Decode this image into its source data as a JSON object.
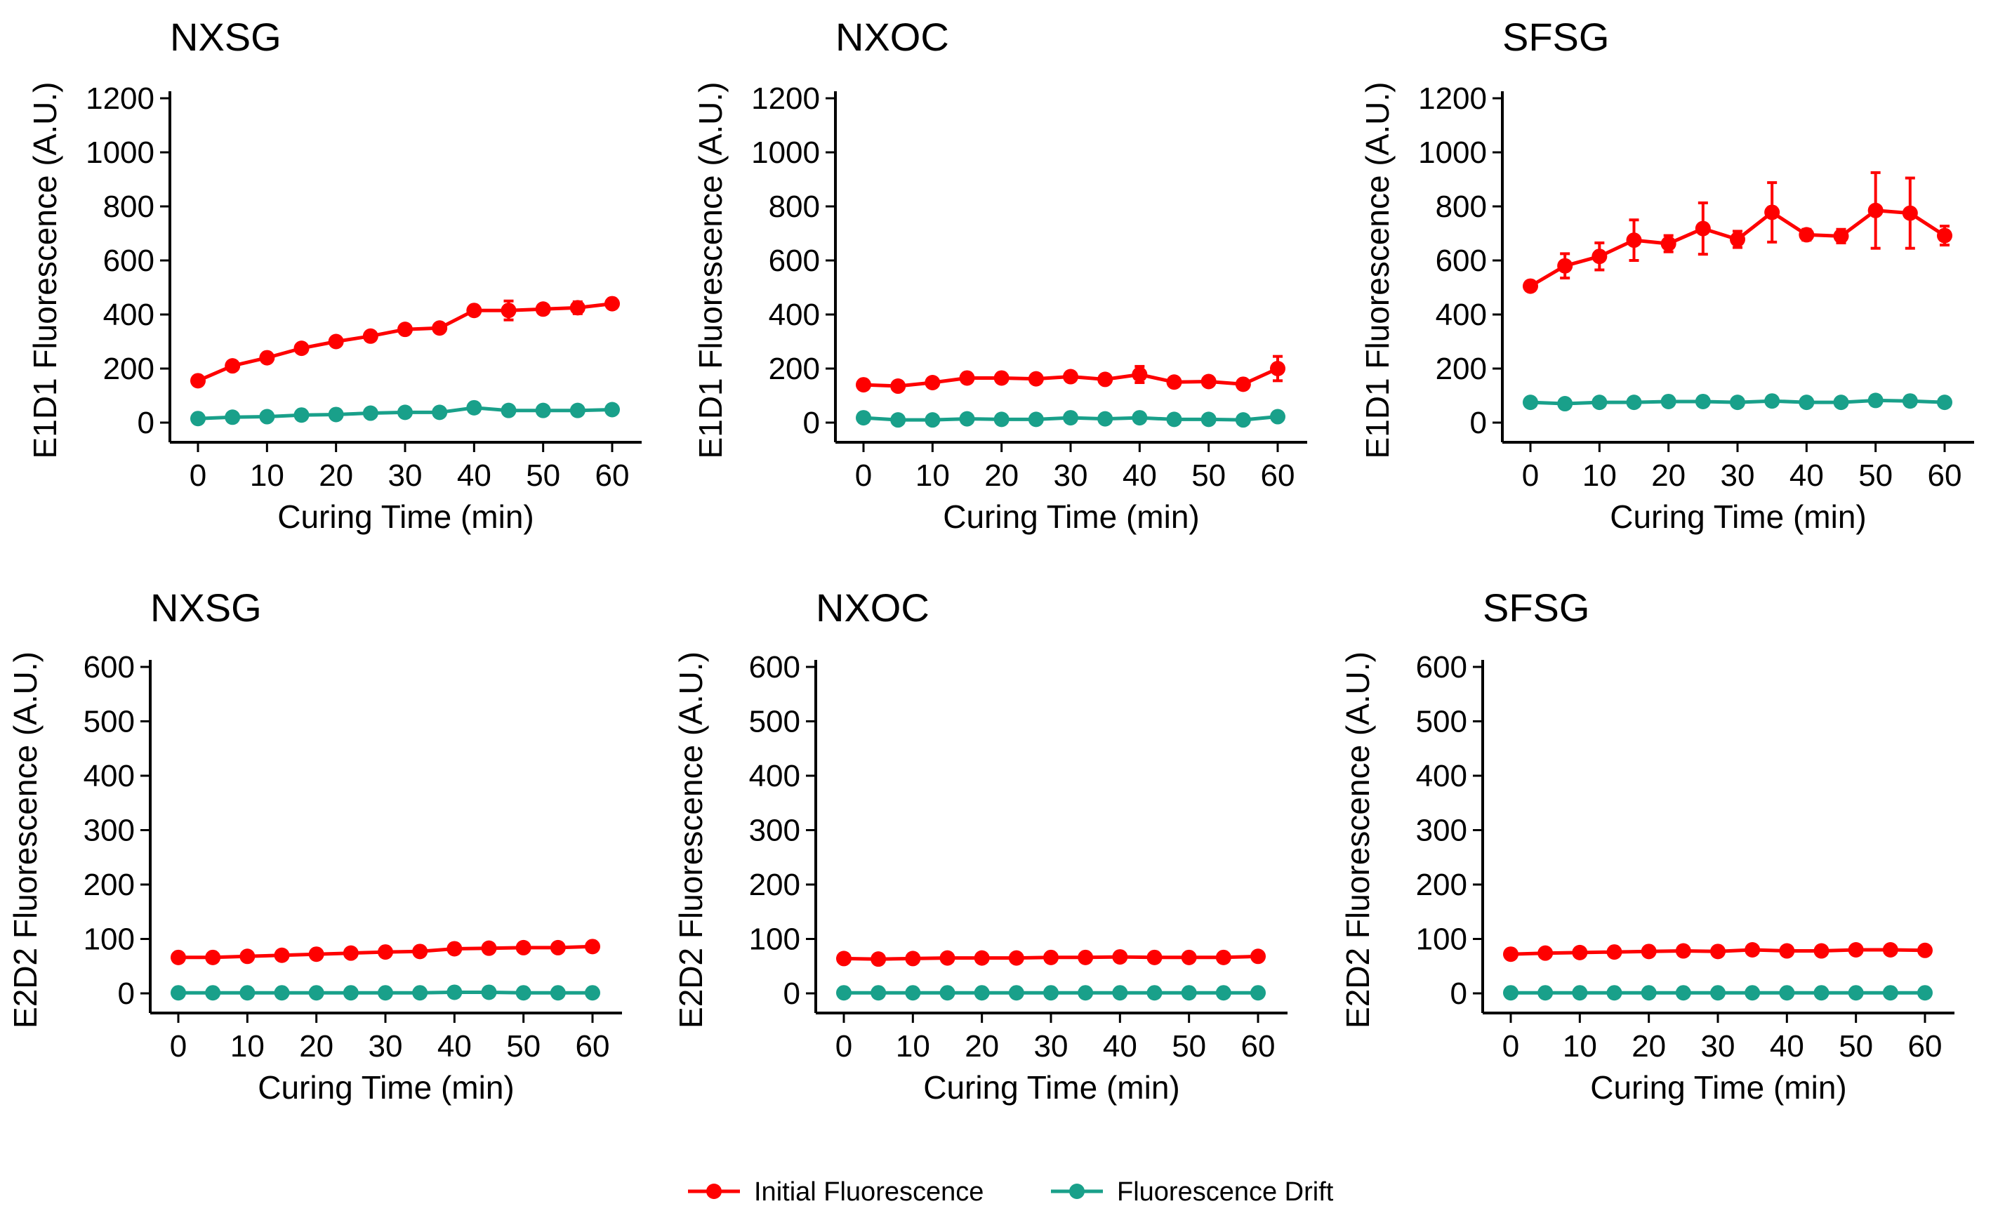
{
  "colors": {
    "initial": "#fe0000",
    "drift": "#19a08a",
    "axis": "#000000",
    "background": "#ffffff"
  },
  "legend": {
    "position": "bottom-center",
    "items": [
      {
        "label": "Initial Fluorescence",
        "series": "initial"
      },
      {
        "label": "Fluorescence Drift",
        "series": "drift"
      }
    ]
  },
  "chart_data": [
    {
      "type": "line",
      "title": "NXSG",
      "xlabel": "Curing Time (min)",
      "ylabel": "E1D1 Fluorescence (A.U.)",
      "xlim": [
        0,
        60
      ],
      "ylim": [
        0,
        1200
      ],
      "xticks": [
        0,
        10,
        20,
        30,
        40,
        50,
        60
      ],
      "yticks": [
        0,
        200,
        400,
        600,
        800,
        1000,
        1200
      ],
      "x": [
        0,
        5,
        10,
        15,
        20,
        25,
        30,
        35,
        40,
        45,
        50,
        55,
        60
      ],
      "series": [
        {
          "name": "Initial Fluorescence",
          "key": "initial",
          "values": [
            155,
            210,
            240,
            275,
            300,
            320,
            345,
            350,
            415,
            415,
            420,
            425,
            440
          ],
          "errors": [
            10,
            8,
            8,
            8,
            8,
            8,
            8,
            8,
            12,
            35,
            10,
            22,
            10
          ]
        },
        {
          "name": "Fluorescence Drift",
          "key": "drift",
          "values": [
            15,
            20,
            22,
            28,
            30,
            35,
            38,
            38,
            55,
            45,
            45,
            45,
            48
          ],
          "errors": [
            5,
            5,
            5,
            5,
            5,
            5,
            5,
            5,
            8,
            10,
            5,
            5,
            5
          ]
        }
      ]
    },
    {
      "type": "line",
      "title": "NXOC",
      "xlabel": "Curing Time (min)",
      "ylabel": "E1D1 Fluorescence (A.U.)",
      "xlim": [
        0,
        60
      ],
      "ylim": [
        0,
        1200
      ],
      "xticks": [
        0,
        10,
        20,
        30,
        40,
        50,
        60
      ],
      "yticks": [
        0,
        200,
        400,
        600,
        800,
        1000,
        1200
      ],
      "x": [
        0,
        5,
        10,
        15,
        20,
        25,
        30,
        35,
        40,
        45,
        50,
        55,
        60
      ],
      "series": [
        {
          "name": "Initial Fluorescence",
          "key": "initial",
          "values": [
            140,
            135,
            148,
            165,
            165,
            162,
            170,
            160,
            178,
            150,
            152,
            142,
            200
          ],
          "errors": [
            8,
            8,
            8,
            10,
            8,
            8,
            8,
            8,
            30,
            8,
            8,
            12,
            45
          ]
        },
        {
          "name": "Fluorescence Drift",
          "key": "drift",
          "values": [
            18,
            10,
            10,
            14,
            12,
            12,
            18,
            14,
            18,
            12,
            12,
            10,
            22
          ],
          "errors": [
            4,
            4,
            4,
            4,
            4,
            4,
            4,
            4,
            8,
            4,
            4,
            4,
            8
          ]
        }
      ]
    },
    {
      "type": "line",
      "title": "SFSG",
      "xlabel": "Curing Time (min)",
      "ylabel": "E1D1 Fluorescence (A.U.)",
      "xlim": [
        0,
        60
      ],
      "ylim": [
        0,
        1200
      ],
      "xticks": [
        0,
        10,
        20,
        30,
        40,
        50,
        60
      ],
      "yticks": [
        0,
        200,
        400,
        600,
        800,
        1000,
        1200
      ],
      "x": [
        0,
        5,
        10,
        15,
        20,
        25,
        30,
        35,
        40,
        45,
        50,
        55,
        60
      ],
      "series": [
        {
          "name": "Initial Fluorescence",
          "key": "initial",
          "values": [
            505,
            580,
            615,
            675,
            662,
            718,
            678,
            778,
            695,
            690,
            785,
            775,
            692
          ],
          "errors": [
            10,
            45,
            50,
            75,
            30,
            95,
            30,
            110,
            20,
            25,
            140,
            130,
            35
          ]
        },
        {
          "name": "Fluorescence Drift",
          "key": "drift",
          "values": [
            75,
            70,
            75,
            75,
            78,
            78,
            75,
            80,
            75,
            75,
            82,
            80,
            75
          ],
          "errors": [
            6,
            15,
            15,
            12,
            12,
            10,
            8,
            15,
            8,
            8,
            18,
            18,
            10
          ]
        }
      ]
    },
    {
      "type": "line",
      "title": "NXSG",
      "xlabel": "Curing Time (min)",
      "ylabel": "E2D2 Fluorescence (A.U.)",
      "xlim": [
        0,
        60
      ],
      "ylim": [
        0,
        600
      ],
      "xticks": [
        0,
        10,
        20,
        30,
        40,
        50,
        60
      ],
      "yticks": [
        0,
        100,
        200,
        300,
        400,
        500,
        600
      ],
      "x": [
        0,
        5,
        10,
        15,
        20,
        25,
        30,
        35,
        40,
        45,
        50,
        55,
        60
      ],
      "series": [
        {
          "name": "Initial Fluorescence",
          "key": "initial",
          "values": [
            66,
            66,
            68,
            70,
            72,
            74,
            76,
            77,
            82,
            83,
            84,
            84,
            86
          ],
          "errors": [
            2,
            2,
            2,
            2,
            2,
            2,
            2,
            2,
            3,
            3,
            3,
            3,
            3
          ]
        },
        {
          "name": "Fluorescence Drift",
          "key": "drift",
          "values": [
            1,
            1,
            1,
            1,
            1,
            1,
            1,
            1,
            2,
            2,
            1,
            1,
            1
          ],
          "errors": [
            0,
            0,
            0,
            0,
            0,
            0,
            0,
            0,
            0,
            0,
            0,
            0,
            0
          ]
        }
      ]
    },
    {
      "type": "line",
      "title": "NXOC",
      "xlabel": "Curing Time (min)",
      "ylabel": "E2D2 Fluorescence (A.U.)",
      "xlim": [
        0,
        60
      ],
      "ylim": [
        0,
        600
      ],
      "xticks": [
        0,
        10,
        20,
        30,
        40,
        50,
        60
      ],
      "yticks": [
        0,
        100,
        200,
        300,
        400,
        500,
        600
      ],
      "x": [
        0,
        5,
        10,
        15,
        20,
        25,
        30,
        35,
        40,
        45,
        50,
        55,
        60
      ],
      "series": [
        {
          "name": "Initial Fluorescence",
          "key": "initial",
          "values": [
            64,
            63,
            64,
            65,
            65,
            65,
            66,
            66,
            67,
            66,
            66,
            66,
            68
          ],
          "errors": [
            2,
            2,
            2,
            2,
            2,
            2,
            2,
            2,
            2,
            2,
            2,
            2,
            2
          ]
        },
        {
          "name": "Fluorescence Drift",
          "key": "drift",
          "values": [
            1,
            1,
            1,
            1,
            1,
            1,
            1,
            1,
            1,
            1,
            1,
            1,
            1
          ],
          "errors": [
            0,
            0,
            0,
            0,
            0,
            0,
            0,
            0,
            0,
            0,
            0,
            0,
            0
          ]
        }
      ]
    },
    {
      "type": "line",
      "title": "SFSG",
      "xlabel": "Curing Time (min)",
      "ylabel": "E2D2 Fluorescence (A.U.)",
      "xlim": [
        0,
        60
      ],
      "ylim": [
        0,
        600
      ],
      "xticks": [
        0,
        10,
        20,
        30,
        40,
        50,
        60
      ],
      "yticks": [
        0,
        100,
        200,
        300,
        400,
        500,
        600
      ],
      "x": [
        0,
        5,
        10,
        15,
        20,
        25,
        30,
        35,
        40,
        45,
        50,
        55,
        60
      ],
      "series": [
        {
          "name": "Initial Fluorescence",
          "key": "initial",
          "values": [
            72,
            74,
            75,
            76,
            77,
            78,
            77,
            80,
            78,
            78,
            80,
            80,
            79
          ],
          "errors": [
            2,
            2,
            2,
            2,
            2,
            2,
            2,
            2,
            2,
            2,
            2,
            2,
            2
          ]
        },
        {
          "name": "Fluorescence Drift",
          "key": "drift",
          "values": [
            1,
            1,
            1,
            1,
            1,
            1,
            1,
            1,
            1,
            1,
            1,
            1,
            1
          ],
          "errors": [
            0,
            0,
            0,
            0,
            0,
            0,
            0,
            0,
            0,
            0,
            0,
            0,
            0
          ]
        }
      ]
    }
  ]
}
